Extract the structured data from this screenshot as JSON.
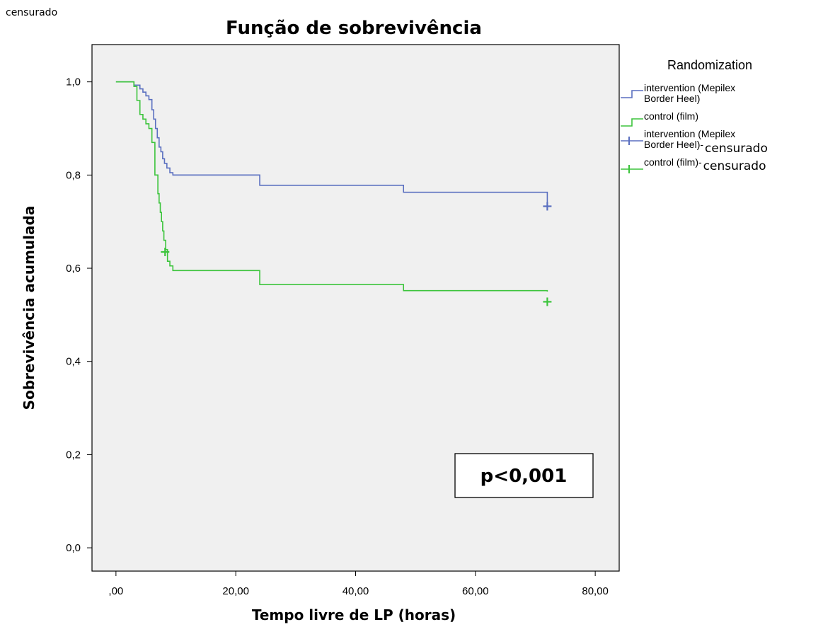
{
  "corner_label": "censurado",
  "chart_data": {
    "type": "line",
    "step": true,
    "title": "Função de sobrevivência",
    "xlabel": "Tempo livre de LP (horas)",
    "ylabel": "Sobrevivência acumulada",
    "xlim": [
      -4,
      84
    ],
    "ylim": [
      -0.05,
      1.08
    ],
    "xticks": [
      0,
      20,
      40,
      60,
      80
    ],
    "xtick_labels": [
      ",00",
      "20,00",
      "40,00",
      "60,00",
      "80,00"
    ],
    "yticks": [
      0.0,
      0.2,
      0.4,
      0.6,
      0.8,
      1.0
    ],
    "ytick_labels": [
      "0,0",
      "0,2",
      "0,4",
      "0,6",
      "0,8",
      "1,0"
    ],
    "grid": false,
    "legend": {
      "title": "Randomization",
      "position": "right",
      "entries": [
        {
          "label_lines": [
            "intervention (Mepilex",
            "Border Heel)"
          ],
          "marker": "step",
          "color": "#5a6fc0"
        },
        {
          "label_lines": [
            "control (film)"
          ],
          "marker": "step",
          "color": "#3cc43c"
        },
        {
          "label_lines": [
            "intervention (Mepilex",
            "Border Heel)-"
          ],
          "suffix": "censurado",
          "marker": "plus",
          "color": "#5a6fc0"
        },
        {
          "label_lines": [
            "control (film)-"
          ],
          "suffix": "censurado",
          "marker": "plus",
          "color": "#3cc43c"
        }
      ]
    },
    "series": [
      {
        "name": "intervention (Mepilex Border Heel)",
        "color": "#5a6fc0",
        "x": [
          0,
          3,
          4,
          4.5,
          5,
          5.5,
          6,
          6.3,
          6.6,
          6.9,
          7.2,
          7.5,
          7.8,
          8.1,
          8.5,
          9,
          9.5,
          24,
          48,
          72
        ],
        "y": [
          1.0,
          0.993,
          0.985,
          0.978,
          0.97,
          0.962,
          0.94,
          0.92,
          0.9,
          0.88,
          0.86,
          0.85,
          0.835,
          0.825,
          0.815,
          0.805,
          0.8,
          0.778,
          0.763,
          0.74
        ],
        "censored": [
          {
            "x": 72,
            "y": 0.733
          }
        ]
      },
      {
        "name": "control (film)",
        "color": "#3cc43c",
        "x": [
          0,
          3,
          3.5,
          4,
          4.5,
          5,
          5.5,
          6,
          6.5,
          7,
          7.2,
          7.4,
          7.6,
          7.8,
          8,
          8.3,
          8.6,
          9,
          9.5,
          24,
          48,
          72
        ],
        "y": [
          1.0,
          0.99,
          0.96,
          0.93,
          0.92,
          0.91,
          0.9,
          0.87,
          0.8,
          0.76,
          0.74,
          0.72,
          0.7,
          0.68,
          0.66,
          0.64,
          0.615,
          0.605,
          0.595,
          0.565,
          0.552,
          0.55
        ],
        "censored": [
          {
            "x": 8.2,
            "y": 0.635
          },
          {
            "x": 72,
            "y": 0.528
          }
        ]
      }
    ],
    "annotation": "p<0,001"
  }
}
